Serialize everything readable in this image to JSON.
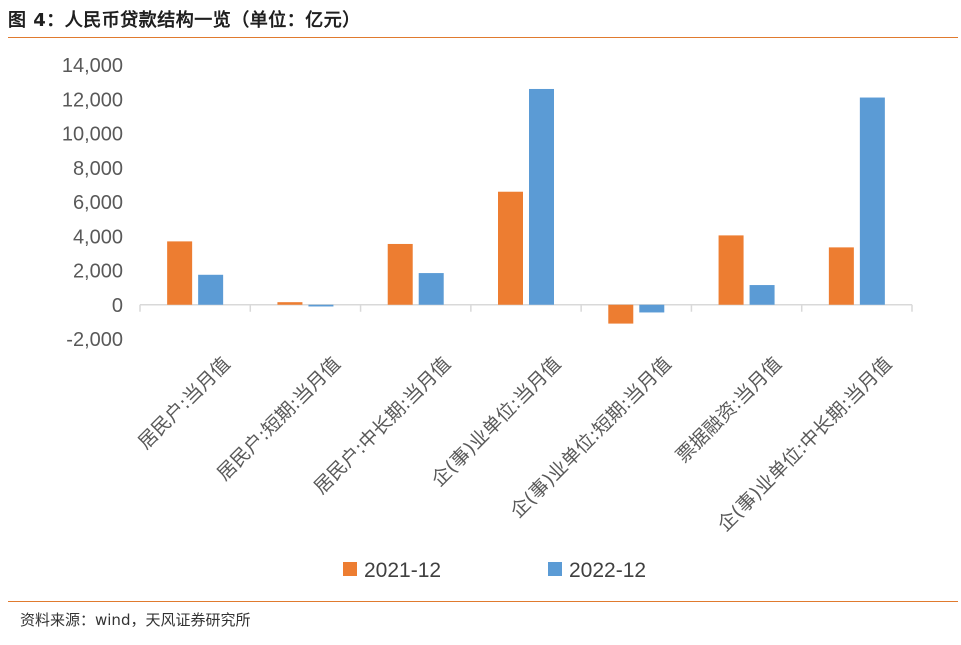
{
  "header": {
    "title": "图 4：人民币贷款结构一览（单位：亿元）"
  },
  "footer": {
    "source": "资料来源：wind，天风证券研究所"
  },
  "colors": {
    "accent_rule": "#e07a2e",
    "series_2021": "#ed7d31",
    "series_2022": "#5b9bd5",
    "axis": "#d9d9d9",
    "text": "#595959"
  },
  "chart_data": {
    "type": "bar",
    "categories": [
      "居民户:当月值",
      "居民户:短期:当月值",
      "居民户:中长期:当月值",
      "企(事)业单位:当月值",
      "企(事)业单位:短期:当月值",
      "票据融资:当月值",
      "企(事)业单位:中长期:当月值"
    ],
    "series": [
      {
        "name": "2021-12",
        "color": "#ed7d31",
        "values": [
          3700,
          150,
          3550,
          6600,
          -1100,
          4050,
          3350
        ]
      },
      {
        "name": "2022-12",
        "color": "#5b9bd5",
        "values": [
          1750,
          -100,
          1850,
          12600,
          -450,
          1150,
          12100
        ]
      }
    ],
    "yticks": [
      "14,000",
      "12,000",
      "10,000",
      "8,000",
      "6,000",
      "4,000",
      "2,000",
      "0",
      "-2,000"
    ],
    "ylim": [
      -2000,
      14000
    ],
    "grid": false,
    "legend_position": "bottom"
  }
}
